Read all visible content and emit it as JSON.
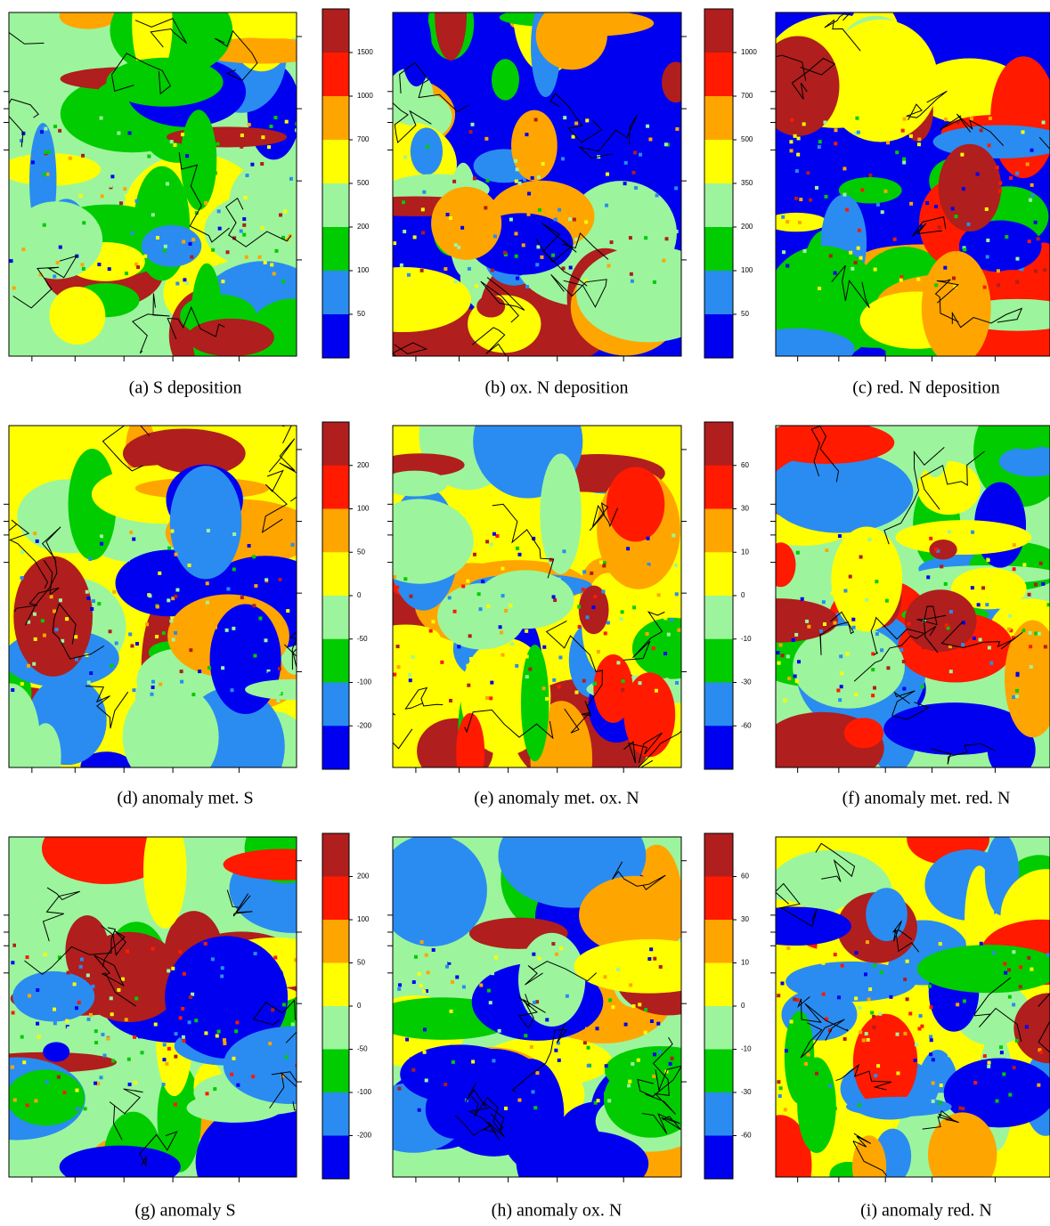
{
  "palette": [
    "#b01e1e",
    "#ff1a00",
    "#ffa500",
    "#ffff00",
    "#9cf59c",
    "#00cc00",
    "#2a8cf0",
    "#0000f0"
  ],
  "panels": [
    {
      "caption": "(a)  S deposition"
    },
    {
      "caption": "(b)  ox. N deposition"
    },
    {
      "caption": "(c)  red. N deposition"
    },
    {
      "caption": "(d)  anomaly met. S"
    },
    {
      "caption": "(e)  anomaly met. ox. N"
    },
    {
      "caption": "(f)  anomaly met. red. N"
    },
    {
      "caption": "(g)  anomaly S"
    },
    {
      "caption": "(h)  anomaly ox. N"
    },
    {
      "caption": "(i)  anomaly red. N"
    }
  ],
  "colorbars": [
    {
      "labels": [
        1500,
        1000,
        700,
        500,
        200,
        100,
        50
      ]
    },
    {
      "labels": [
        1000,
        700,
        500,
        350,
        200,
        100,
        50
      ]
    },
    {
      "labels": [
        200,
        100,
        50,
        0,
        -50,
        -100,
        -200
      ]
    },
    {
      "labels": [
        60,
        30,
        10,
        0,
        -10,
        -30,
        -60
      ]
    },
    {
      "labels": [
        200,
        100,
        50,
        0,
        -50,
        -100,
        -200
      ]
    },
    {
      "labels": [
        60,
        30,
        10,
        0,
        -10,
        -30,
        -60
      ]
    }
  ]
}
